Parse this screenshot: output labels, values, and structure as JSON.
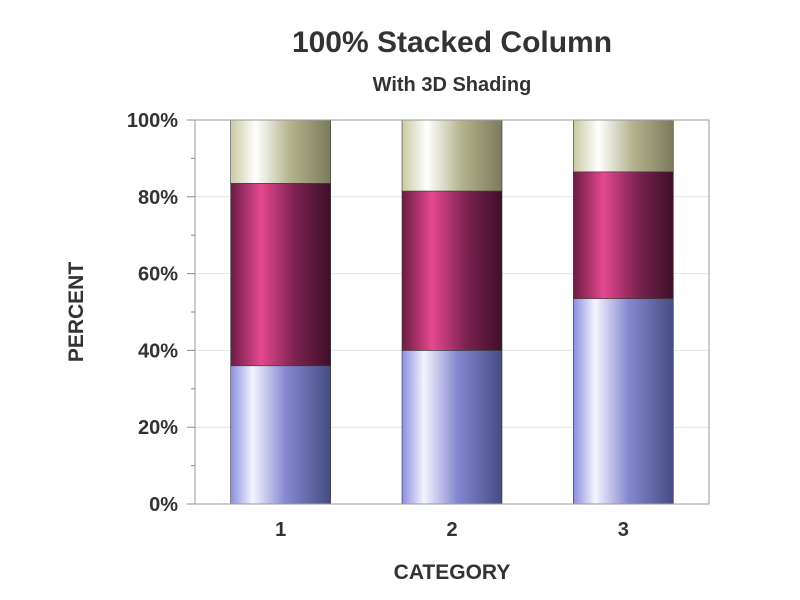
{
  "chart_data": {
    "type": "bar",
    "stacked": "percent",
    "title": "100% Stacked Column",
    "subtitle": "With 3D Shading",
    "xlabel": "CATEGORY",
    "ylabel": "PERCENT",
    "categories": [
      "1",
      "2",
      "3"
    ],
    "ylim": [
      0,
      100
    ],
    "y_ticks": [
      "0%",
      "20%",
      "40%",
      "60%",
      "80%",
      "100%"
    ],
    "grid": true,
    "legend": "none",
    "series": [
      {
        "values": [
          36,
          40,
          53.5
        ],
        "color": "#8f92e6"
      },
      {
        "values": [
          47.5,
          41.5,
          33
        ],
        "color": "#b0336e"
      },
      {
        "values": [
          16.5,
          18.5,
          13.5
        ],
        "color": "#c8c8a0"
      }
    ]
  }
}
